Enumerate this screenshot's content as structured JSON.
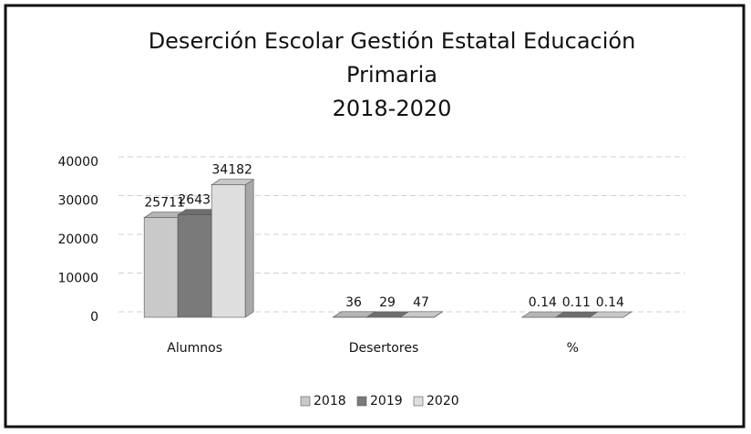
{
  "chart_data": {
    "type": "bar3d",
    "title": [
      "Deserción Escolar Gestión Estatal Educación",
      "Primaria",
      "2018-2020"
    ],
    "categories": [
      "Alumnos",
      "Desertores",
      "%"
    ],
    "series": [
      {
        "name": "2018",
        "color": "#c9c9c9",
        "values": [
          25711,
          36,
          0.14
        ]
      },
      {
        "name": "2019",
        "color": "#7a7a7a",
        "values": [
          26432,
          29,
          0.11
        ]
      },
      {
        "name": "2020",
        "color": "#dedede",
        "values": [
          34182,
          47,
          0.14
        ]
      }
    ],
    "ylim": [
      0,
      40000
    ],
    "yticks": [
      0,
      10000,
      20000,
      30000,
      40000
    ],
    "grid": true,
    "legend": "bottom"
  }
}
